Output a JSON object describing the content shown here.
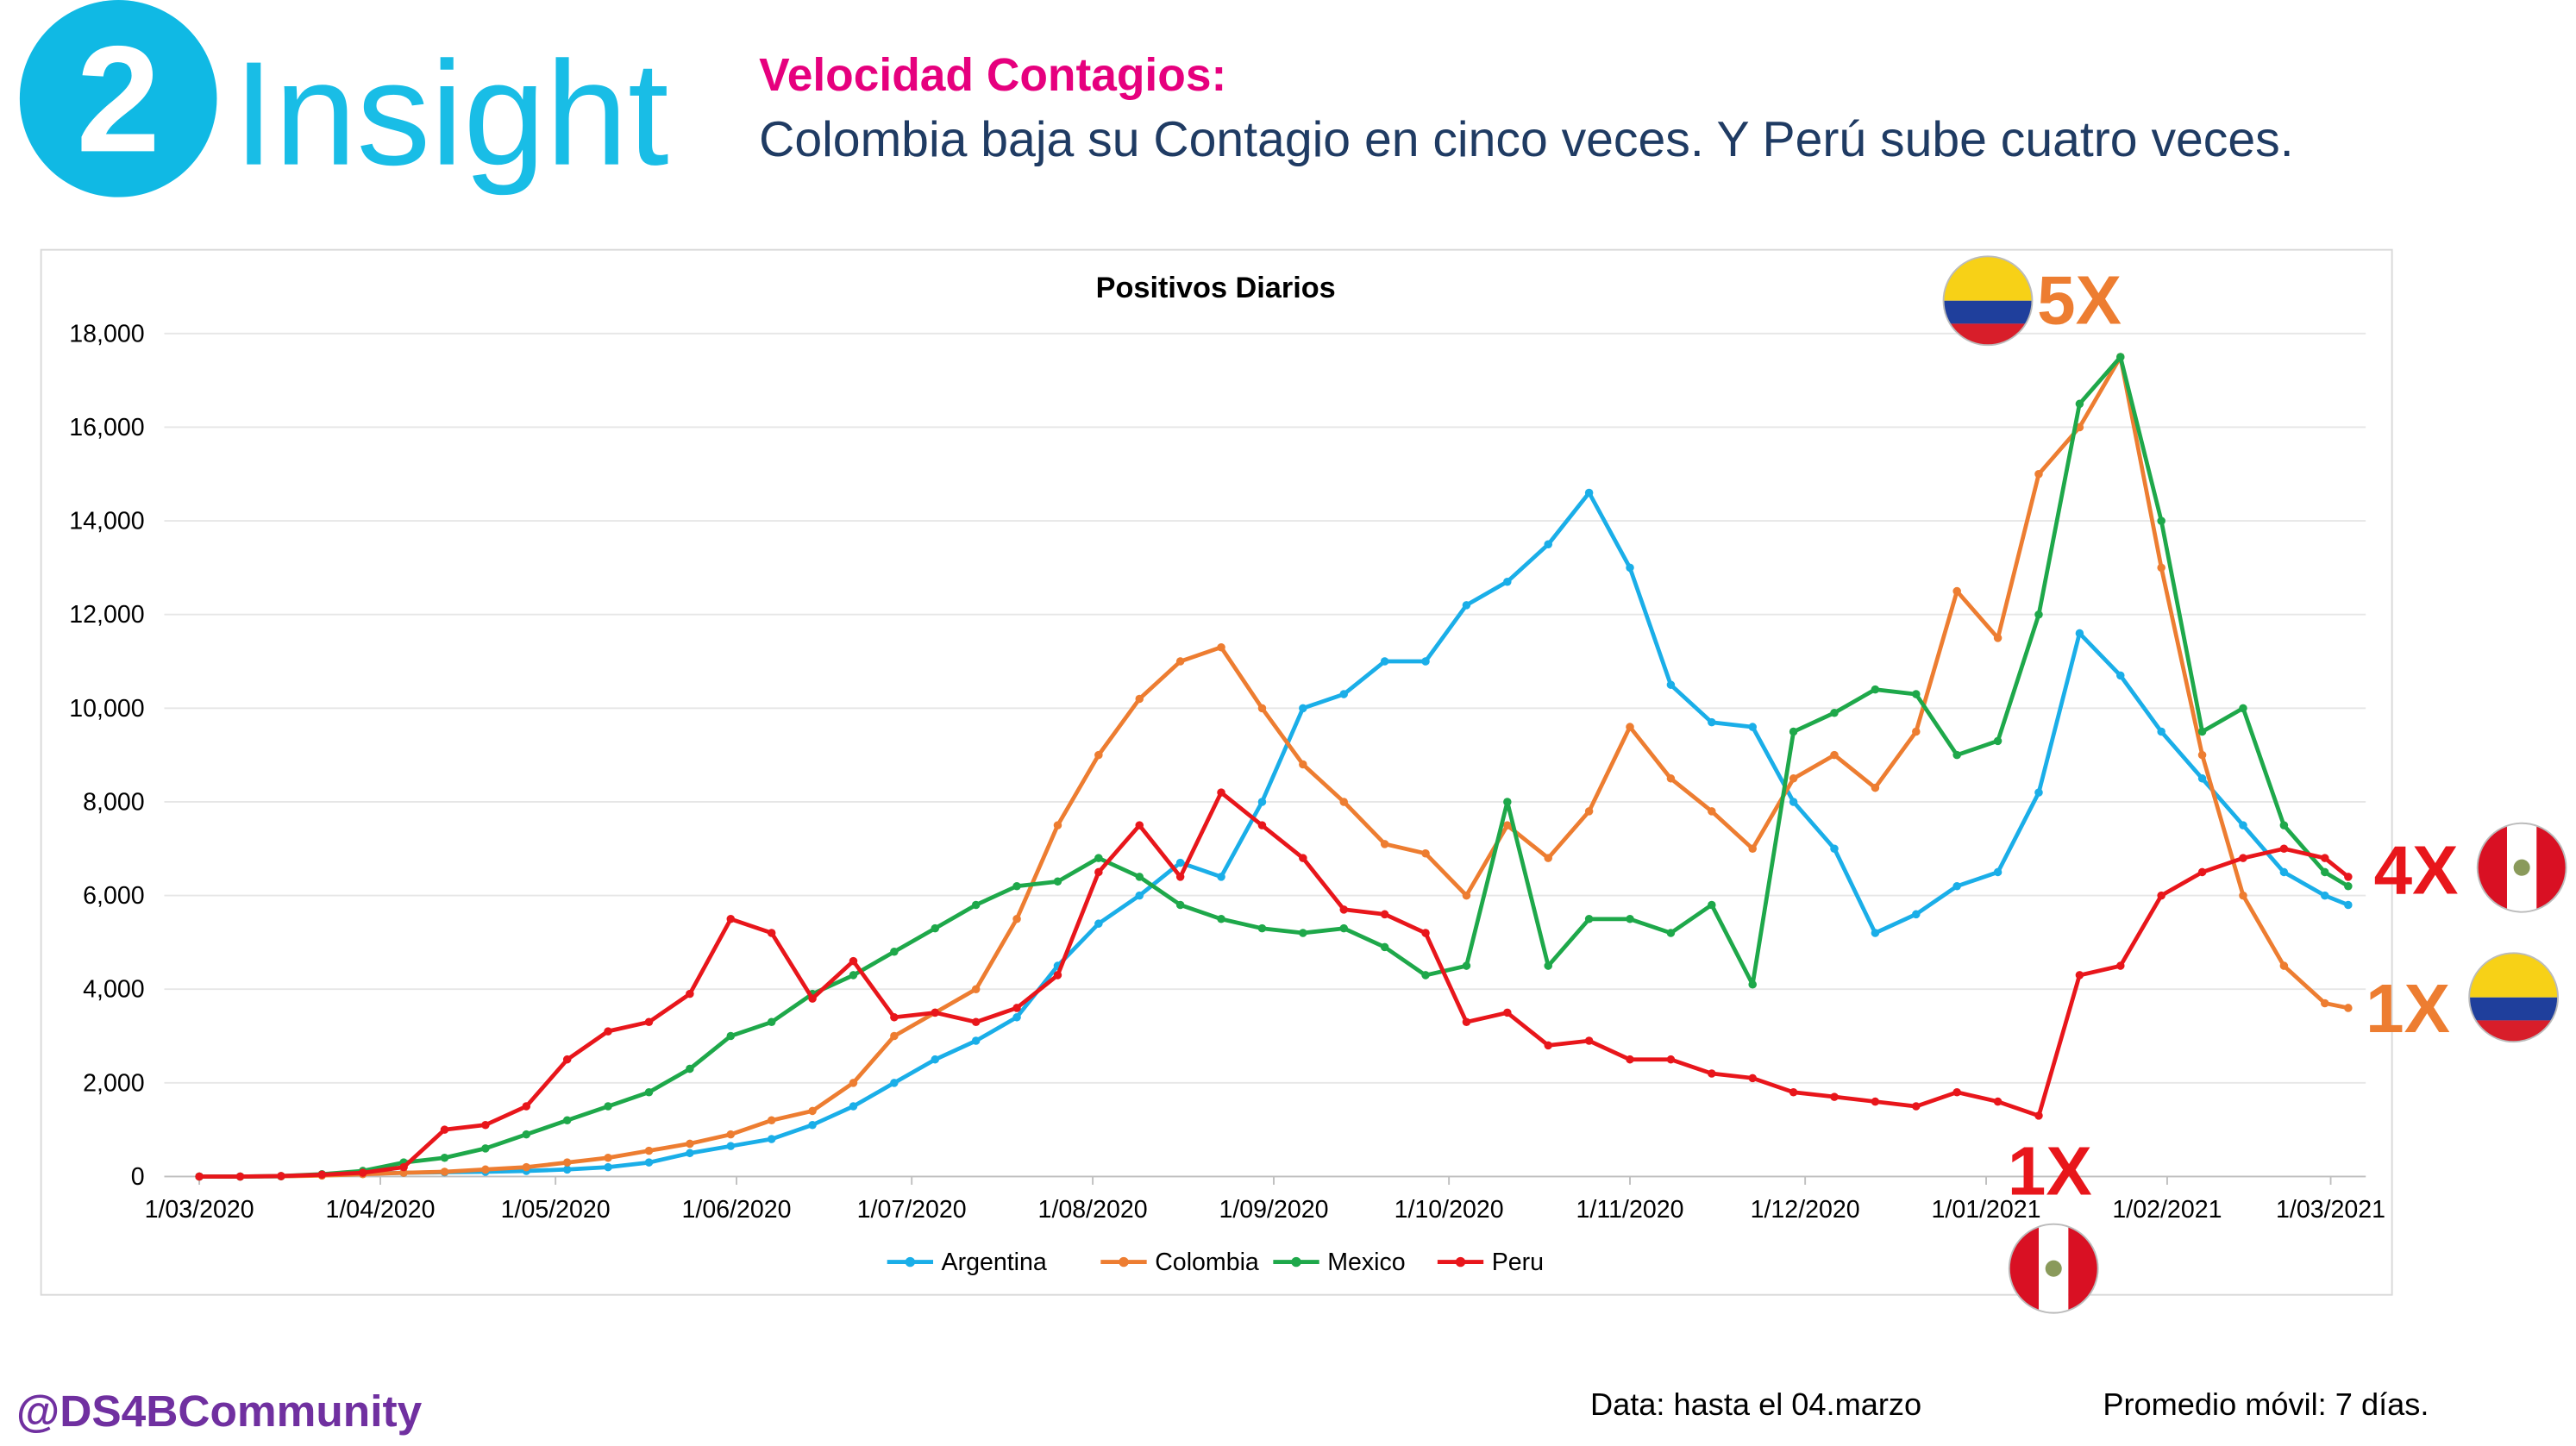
{
  "header": {
    "number": "2",
    "brand": "Insight",
    "heading": "Velocidad Contagios:",
    "subheading": "Colombia baja su Contagio en cinco veces. Y Perú sube cuatro veces."
  },
  "chart_data": {
    "type": "line",
    "title": "Positivos Diarios",
    "x": [
      "1/03/2020",
      "8/03/2020",
      "15/03/2020",
      "22/03/2020",
      "29/03/2020",
      "5/04/2020",
      "12/04/2020",
      "19/04/2020",
      "26/04/2020",
      "3/05/2020",
      "10/05/2020",
      "17/05/2020",
      "24/05/2020",
      "31/05/2020",
      "7/06/2020",
      "14/06/2020",
      "21/06/2020",
      "28/06/2020",
      "5/07/2020",
      "12/07/2020",
      "19/07/2020",
      "26/07/2020",
      "2/08/2020",
      "9/08/2020",
      "16/08/2020",
      "23/08/2020",
      "30/08/2020",
      "6/09/2020",
      "13/09/2020",
      "20/09/2020",
      "27/09/2020",
      "4/10/2020",
      "11/10/2020",
      "18/10/2020",
      "25/10/2020",
      "1/11/2020",
      "8/11/2020",
      "15/11/2020",
      "22/11/2020",
      "29/11/2020",
      "6/12/2020",
      "13/12/2020",
      "20/12/2020",
      "27/12/2020",
      "3/01/2021",
      "10/01/2021",
      "17/01/2021",
      "24/01/2021",
      "31/01/2021",
      "7/02/2021",
      "14/02/2021",
      "21/02/2021",
      "28/02/2021",
      "4/03/2021"
    ],
    "series": [
      {
        "name": "Argentina",
        "color": "#1aaee8",
        "values": [
          0,
          0,
          5,
          30,
          60,
          80,
          90,
          100,
          120,
          150,
          200,
          300,
          500,
          650,
          800,
          1100,
          1500,
          2000,
          2500,
          2900,
          3400,
          4500,
          5400,
          6000,
          6700,
          6400,
          8000,
          10000,
          10300,
          11000,
          11000,
          12200,
          12700,
          13500,
          14600,
          13000,
          10500,
          9700,
          9600,
          8000,
          7000,
          5200,
          5600,
          6200,
          6500,
          8200,
          11600,
          10700,
          9500,
          8500,
          7500,
          6500,
          6000,
          5800
        ]
      },
      {
        "name": "Colombia",
        "color": "#ed7d31",
        "values": [
          0,
          0,
          5,
          20,
          50,
          80,
          100,
          150,
          200,
          300,
          400,
          550,
          700,
          900,
          1200,
          1400,
          2000,
          3000,
          3500,
          4000,
          5500,
          7500,
          9000,
          10200,
          11000,
          11300,
          10000,
          8800,
          8000,
          7100,
          6900,
          6000,
          7500,
          6800,
          7800,
          9600,
          8500,
          7800,
          7000,
          8500,
          9000,
          8300,
          9500,
          12500,
          11500,
          15000,
          16000,
          17500,
          13000,
          9000,
          6000,
          4500,
          3700,
          3600
        ]
      },
      {
        "name": "Mexico",
        "color": "#1ea84a",
        "values": [
          0,
          0,
          10,
          50,
          120,
          300,
          400,
          600,
          900,
          1200,
          1500,
          1800,
          2300,
          3000,
          3300,
          3900,
          4300,
          4800,
          5300,
          5800,
          6200,
          6300,
          6800,
          6400,
          5800,
          5500,
          5300,
          5200,
          5300,
          4900,
          4300,
          4500,
          8000,
          4500,
          5500,
          5500,
          5200,
          5800,
          4100,
          9500,
          9900,
          10400,
          10300,
          9000,
          9300,
          12000,
          16500,
          17500,
          14000,
          9500,
          10000,
          7500,
          6500,
          6200
        ]
      },
      {
        "name": "Peru",
        "color": "#e8161b",
        "values": [
          0,
          0,
          10,
          40,
          80,
          200,
          1000,
          1100,
          1500,
          2500,
          3100,
          3300,
          3900,
          5500,
          5200,
          3800,
          4600,
          3400,
          3500,
          3300,
          3600,
          4300,
          6500,
          7500,
          6400,
          8200,
          7500,
          6800,
          5700,
          5600,
          5200,
          3300,
          3500,
          2800,
          2900,
          2500,
          2500,
          2200,
          2100,
          1800,
          1700,
          1600,
          1500,
          1800,
          1600,
          1300,
          4300,
          4500,
          6000,
          6500,
          6800,
          7000,
          6800,
          6400
        ]
      }
    ],
    "xlim": [
      "24/02/2020",
      "7/03/2021"
    ],
    "xticks": [
      "1/03/2020",
      "1/04/2020",
      "1/05/2020",
      "1/06/2020",
      "1/07/2020",
      "1/08/2020",
      "1/09/2020",
      "1/10/2020",
      "1/11/2020",
      "1/12/2020",
      "1/01/2021",
      "1/02/2021",
      "1/03/2021"
    ],
    "ylim": [
      0,
      18000
    ],
    "yticks": [
      0,
      {
        "value": 2000,
        "label": "2,000"
      },
      {
        "value": 4000,
        "label": "4,000"
      },
      {
        "value": 6000,
        "label": "6,000"
      },
      {
        "value": 8000,
        "label": "8,000"
      },
      {
        "value": 10000,
        "label": "10,000"
      },
      {
        "value": 12000,
        "label": "12,000"
      },
      {
        "value": 14000,
        "label": "14,000"
      },
      {
        "value": 16000,
        "label": "16,000"
      },
      {
        "value": 18000,
        "label": "18,000"
      }
    ],
    "grid": true,
    "legend": "bottom",
    "annotations": [
      {
        "text": "5X",
        "color": "#ed7d31"
      },
      {
        "text": "4X",
        "color": "#e8161b"
      },
      {
        "text": "1X",
        "color": "#ed7d31"
      },
      {
        "text": "1X",
        "color": "#e8161b"
      }
    ]
  },
  "footer": {
    "handle": "@DS4BCommunity",
    "data_note": "Data: hasta el 04.marzo",
    "average_note": "Promedio móvil: 7 días."
  }
}
